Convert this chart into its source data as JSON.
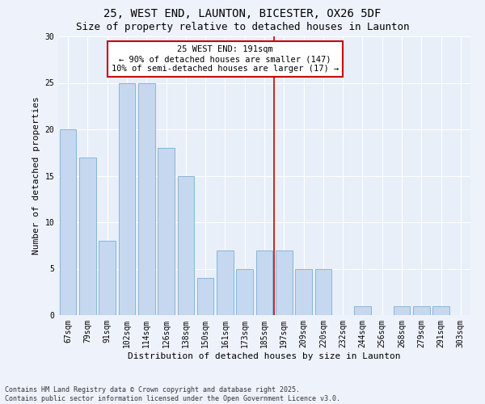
{
  "title1": "25, WEST END, LAUNTON, BICESTER, OX26 5DF",
  "title2": "Size of property relative to detached houses in Launton",
  "xlabel": "Distribution of detached houses by size in Launton",
  "ylabel": "Number of detached properties",
  "categories": [
    "67sqm",
    "79sqm",
    "91sqm",
    "102sqm",
    "114sqm",
    "126sqm",
    "138sqm",
    "150sqm",
    "161sqm",
    "173sqm",
    "185sqm",
    "197sqm",
    "209sqm",
    "220sqm",
    "232sqm",
    "244sqm",
    "256sqm",
    "268sqm",
    "279sqm",
    "291sqm",
    "303sqm"
  ],
  "values": [
    20,
    17,
    8,
    25,
    25,
    18,
    15,
    4,
    7,
    5,
    7,
    7,
    5,
    5,
    0,
    1,
    0,
    1,
    1,
    1,
    0
  ],
  "bar_color": "#c5d8f0",
  "bar_edge_color": "#7aaed4",
  "background_color": "#e8eff9",
  "vline_color": "#cc0000",
  "annotation_text": "25 WEST END: 191sqm\n← 90% of detached houses are smaller (147)\n10% of semi-detached houses are larger (17) →",
  "annotation_box_color": "#cc0000",
  "ylim": [
    0,
    30
  ],
  "yticks": [
    0,
    5,
    10,
    15,
    20,
    25,
    30
  ],
  "footnote": "Contains HM Land Registry data © Crown copyright and database right 2025.\nContains public sector information licensed under the Open Government Licence v3.0.",
  "title_fontsize": 10,
  "subtitle_fontsize": 9,
  "axis_label_fontsize": 8,
  "tick_fontsize": 7,
  "annotation_fontsize": 7.5
}
